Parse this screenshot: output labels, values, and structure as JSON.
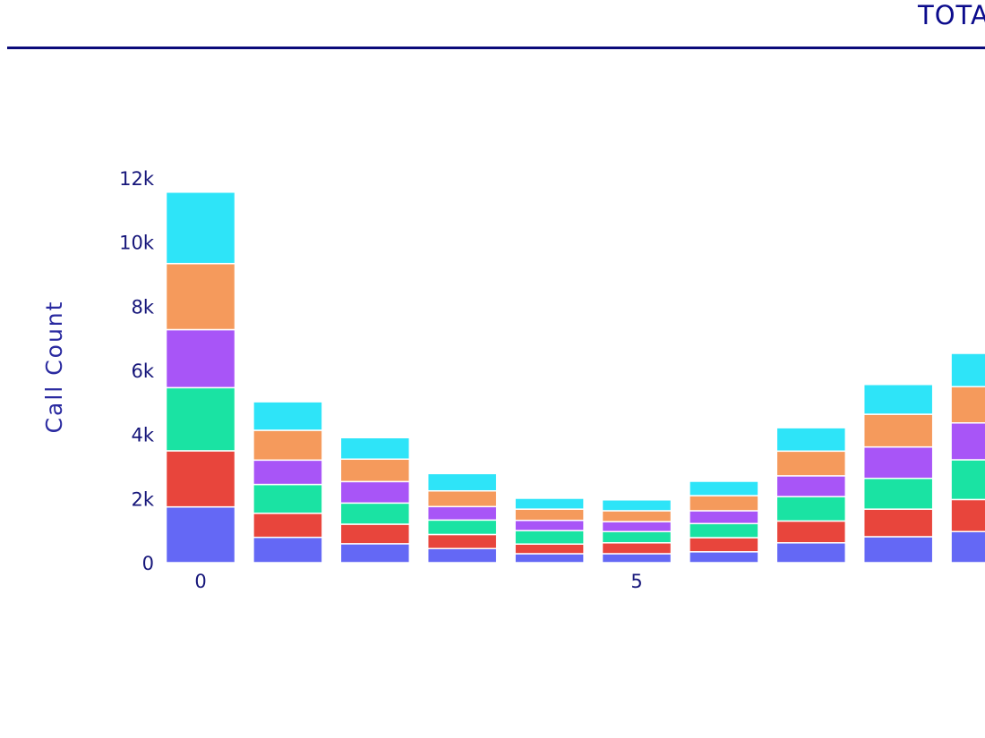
{
  "chart_data": {
    "type": "bar",
    "stacked": true,
    "title": "TOTA",
    "xlabel": "",
    "ylabel": "Call Count",
    "x": [
      0,
      1,
      2,
      3,
      4,
      5,
      6,
      7,
      8,
      9
    ],
    "x_ticks": [
      "0",
      "5"
    ],
    "x_tick_values": [
      0,
      5
    ],
    "y_ticks": [
      "0",
      "2k",
      "4k",
      "6k",
      "8k",
      "10k",
      "12k"
    ],
    "y_tick_values": [
      0,
      2000,
      4000,
      6000,
      8000,
      10000,
      12000
    ],
    "ylim": [
      0,
      12000
    ],
    "grid": false,
    "series": [
      {
        "color": "#6468f5",
        "values": [
          1740,
          790,
          590,
          440,
          280,
          280,
          340,
          620,
          810,
          970
        ]
      },
      {
        "color": "#e8453c",
        "values": [
          1750,
          750,
          610,
          440,
          300,
          340,
          440,
          680,
          860,
          1000
        ]
      },
      {
        "color": "#1ae3a3",
        "values": [
          1970,
          900,
          660,
          450,
          420,
          350,
          440,
          760,
          960,
          1240
        ]
      },
      {
        "color": "#a855f7",
        "values": [
          1810,
          760,
          670,
          420,
          320,
          310,
          400,
          650,
          980,
          1150
        ]
      },
      {
        "color": "#f59a5c",
        "values": [
          2060,
          930,
          700,
          490,
          350,
          340,
          470,
          770,
          1020,
          1130
        ]
      },
      {
        "color": "#2ee4f8",
        "values": [
          2230,
          890,
          670,
          540,
          340,
          340,
          450,
          730,
          930,
          1040
        ]
      }
    ]
  }
}
